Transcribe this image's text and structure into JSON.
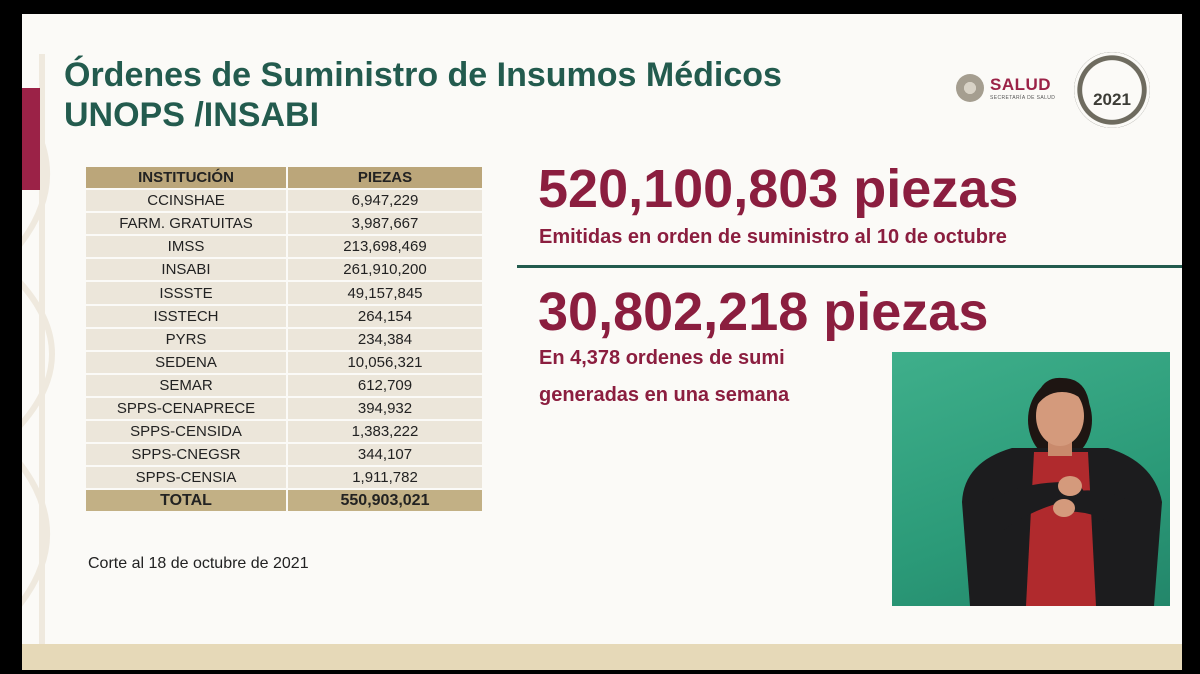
{
  "title": {
    "line1": "Órdenes de Suministro de Insumos Médicos",
    "line2": "UNOPS /INSABI"
  },
  "logos": {
    "salud_name": "SALUD",
    "salud_subtitle": "SECRETARÍA DE SALUD",
    "emblem_year": "2021"
  },
  "table": {
    "headers": [
      "INSTITUCIÓN",
      "PIEZAS"
    ],
    "rows": [
      {
        "institucion": "CCINSHAE",
        "piezas": "6,947,229"
      },
      {
        "institucion": "FARM. GRATUITAS",
        "piezas": "3,987,667"
      },
      {
        "institucion": "IMSS",
        "piezas": "213,698,469"
      },
      {
        "institucion": "INSABI",
        "piezas": "261,910,200"
      },
      {
        "institucion": "ISSSTE",
        "piezas": "49,157,845"
      },
      {
        "institucion": "ISSTECH",
        "piezas": "264,154"
      },
      {
        "institucion": "PYRS",
        "piezas": "234,384"
      },
      {
        "institucion": "SEDENA",
        "piezas": "10,056,321"
      },
      {
        "institucion": "SEMAR",
        "piezas": "612,709"
      },
      {
        "institucion": "SPPS-CENAPRECE",
        "piezas": "394,932"
      },
      {
        "institucion": "SPPS-CENSIDA",
        "piezas": "1,383,222"
      },
      {
        "institucion": "SPPS-CNEGSR",
        "piezas": "344,107"
      },
      {
        "institucion": "SPPS-CENSIA",
        "piezas": "1,911,782"
      }
    ],
    "total_label": "TOTAL",
    "total_value": "550,903,021"
  },
  "note": "Corte al 18 de octubre de 2021",
  "highlight1": {
    "value": "520,100,803 piezas",
    "caption": "Emitidas en orden de suministro al 10 de octubre"
  },
  "highlight2": {
    "value": "30,802,218 piezas",
    "caption_line1": "En 4,378 ordenes de sumi",
    "caption_line2": "generadas en una semana"
  },
  "colors": {
    "guinda": "#8b1e3f",
    "green": "#235b4e",
    "gold": "#bba67a",
    "sign_background": "#2b9a78"
  }
}
